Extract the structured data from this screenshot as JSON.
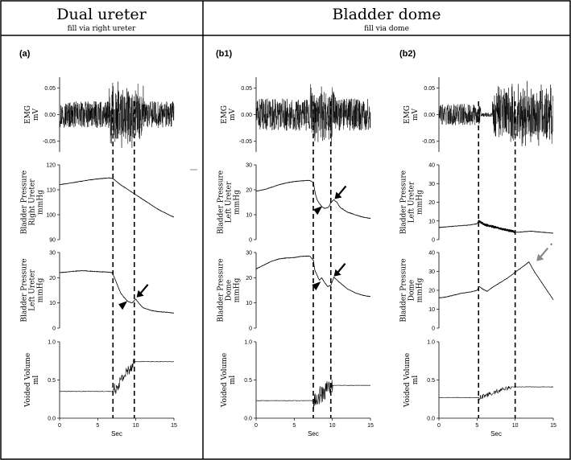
{
  "headers": {
    "left_title": "Dual ureter",
    "left_subtitle": "fill via right ureter",
    "right_title": "Bladder dome",
    "right_subtitle": "fill via dome"
  },
  "chart_data": [
    {
      "type": "line",
      "panel_label": "(a)",
      "xlabel": "Sec",
      "xlim": [
        0,
        15
      ],
      "xticks": [
        0,
        5,
        10,
        15
      ],
      "event_lines_sec": [
        7,
        9.8
      ],
      "rows": [
        {
          "key": "emg",
          "ylabel": [
            "EMG",
            "mV"
          ],
          "ylim": [
            -0.07,
            0.07
          ],
          "yticks": [
            "0.05",
            "0.00",
            "-0.05"
          ],
          "signal": "emg",
          "burst_sec": [
            6.5,
            11
          ],
          "burst_amp": 0.065
        },
        {
          "key": "bp1",
          "ylabel": [
            "Bladder Pressure",
            "Right Ureter",
            "mmHg"
          ],
          "ylim": [
            90,
            120
          ],
          "yticks": [
            "120",
            "110",
            "100",
            "90"
          ],
          "x": [
            0,
            2,
            4,
            5.5,
            6.5,
            7,
            8,
            9,
            10,
            11,
            12,
            13,
            14,
            15
          ],
          "y": [
            112,
            113,
            114,
            114.5,
            114.8,
            114.5,
            112,
            110,
            108,
            106,
            104,
            102,
            100.5,
            99
          ]
        },
        {
          "key": "bp2",
          "ylabel": [
            "Bladder Pressure",
            "Left Ureter",
            "mmHg"
          ],
          "ylim": [
            0,
            30
          ],
          "yticks": [
            "30",
            "20",
            "10",
            "0"
          ],
          "x": [
            0,
            1,
            2,
            3,
            4,
            5,
            6,
            6.9,
            7.2,
            7.6,
            8,
            8.5,
            9,
            9.5,
            10,
            10.5,
            11,
            12,
            13,
            14,
            15
          ],
          "y": [
            22,
            22.3,
            22.6,
            22.8,
            22.6,
            22.4,
            22.3,
            22,
            20,
            17,
            14,
            12,
            10.5,
            10,
            11.5,
            9.5,
            8,
            7,
            6.5,
            6.3,
            6
          ]
        },
        {
          "key": "vv",
          "ylabel": [
            "Voided Volume",
            "ml"
          ],
          "ylim": [
            0,
            1
          ],
          "yticks": [
            "1.0",
            "0.5",
            "0.0"
          ],
          "signal": "volume",
          "base": 0.35,
          "top": 0.74,
          "rise_sec": [
            7,
            9.8
          ],
          "noise": 0.08
        }
      ],
      "annotations": [
        {
          "shape": "arrowhead",
          "row": "bp2",
          "x": 9.1,
          "y": 9.8,
          "color": "#000000"
        },
        {
          "shape": "arrow",
          "row": "bp2",
          "x": 10.1,
          "y": 12.2,
          "color": "#000000"
        }
      ]
    },
    {
      "type": "line",
      "panel_label": "(b1)",
      "xlabel": "Sec",
      "xlim": [
        0,
        15
      ],
      "xticks": [
        0,
        5,
        10,
        15
      ],
      "event_lines_sec": [
        7.5,
        9.8
      ],
      "rows": [
        {
          "key": "emg",
          "ylabel": [
            "EMG",
            "mV"
          ],
          "ylim": [
            -0.07,
            0.07
          ],
          "yticks": [
            "0.05",
            "0.00",
            "-0.05"
          ],
          "signal": "emg",
          "burst_sec": [
            7,
            10.5
          ],
          "burst_amp": 0.06,
          "base_amp": 0.03
        },
        {
          "key": "bp1",
          "ylabel": [
            "Bladder Pressure",
            "Left Ureter",
            "mmHg"
          ],
          "ylim": [
            0,
            30
          ],
          "yticks": [
            "30",
            "20",
            "10",
            "0"
          ],
          "x": [
            0,
            1,
            2,
            3,
            4,
            5,
            6,
            7,
            7.5,
            7.8,
            8,
            8.3,
            8.7,
            9,
            9.5,
            9.8,
            10.2,
            10.6,
            11,
            12,
            13,
            14,
            15
          ],
          "y": [
            19.5,
            20,
            21,
            22,
            22.8,
            23.3,
            23.6,
            23.8,
            23,
            18,
            16,
            14.5,
            13,
            12.5,
            13,
            14.8,
            16,
            15,
            13,
            11,
            10,
            9,
            8.5
          ]
        },
        {
          "key": "bp2",
          "ylabel": [
            "Bladder Pressure",
            "Dome",
            "mmHg"
          ],
          "ylim": [
            0,
            30
          ],
          "yticks": [
            "30",
            "20",
            "10",
            "0"
          ],
          "x": [
            0,
            1,
            2,
            3,
            4,
            5,
            6,
            7,
            7.5,
            7.7,
            8,
            8.3,
            8.6,
            9,
            9.4,
            9.8,
            10.2,
            11,
            12,
            13,
            14,
            15
          ],
          "y": [
            23.5,
            25,
            26.5,
            27.5,
            27.8,
            28,
            28.5,
            28.6,
            27,
            23,
            21,
            19,
            20,
            18,
            16.5,
            17,
            20.2,
            18,
            15.5,
            14,
            13,
            12.5
          ]
        },
        {
          "key": "vv",
          "ylabel": [
            "Voided Volume",
            "ml"
          ],
          "ylim": [
            0,
            1
          ],
          "yticks": [
            "1.0",
            "0.5",
            "0.0"
          ],
          "signal": "volume",
          "base": 0.23,
          "top": 0.43,
          "rise_sec": [
            7.5,
            10
          ],
          "noise": 0.12
        }
      ],
      "annotations": [
        {
          "shape": "arrowhead",
          "row": "bp1",
          "x": 8.9,
          "y": 12.5,
          "color": "#000000"
        },
        {
          "shape": "arrow",
          "row": "bp1",
          "x": 10.3,
          "y": 16.3,
          "color": "#000000"
        },
        {
          "shape": "arrowhead",
          "row": "bp2",
          "x": 8.7,
          "y": 17.5,
          "color": "#000000"
        },
        {
          "shape": "arrow",
          "row": "bp2",
          "x": 10.2,
          "y": 20.5,
          "color": "#000000"
        }
      ]
    },
    {
      "type": "line",
      "panel_label": "(b2)",
      "xlabel": "Sec",
      "xlim": [
        0,
        15
      ],
      "xticks": [
        0,
        5,
        10,
        15
      ],
      "event_lines_sec": [
        5.2,
        10
      ],
      "rows": [
        {
          "key": "emg",
          "ylabel": [
            "EMG",
            "mV"
          ],
          "ylim": [
            -0.07,
            0.07
          ],
          "yticks": [
            "0.05",
            "0.00",
            "-0.05"
          ],
          "signal": "emg",
          "burst_sec": [
            5.5,
            15
          ],
          "burst_amp": 0.065,
          "base_amp": 0.02,
          "quiet_sec": [
            5.5,
            7
          ]
        },
        {
          "key": "bp1",
          "ylabel": [
            "Bladder Pressure",
            "Left Ureter",
            "mmHg"
          ],
          "ylim": [
            0,
            40
          ],
          "yticks": [
            "40",
            "30",
            "20",
            "10",
            "0"
          ],
          "x": [
            0,
            1,
            2,
            3,
            4,
            5,
            5.2,
            5.6,
            6,
            7,
            8,
            9,
            9.6,
            10,
            10.5,
            11,
            12,
            13,
            14,
            15
          ],
          "y": [
            6.5,
            6.8,
            7.2,
            7.5,
            7.8,
            8.5,
            10,
            9,
            8,
            7,
            6,
            5,
            4.5,
            4,
            4,
            4.2,
            4.5,
            4.2,
            3.8,
            3.5
          ],
          "noise": 0.8,
          "noise_sec": [
            5.2,
            10
          ]
        },
        {
          "key": "bp2",
          "ylabel": [
            "Bladder Pressure",
            "Dome",
            "mmHg"
          ],
          "ylim": [
            0,
            40
          ],
          "yticks": [
            "40",
            "30",
            "20",
            "10",
            "0"
          ],
          "x": [
            0,
            1,
            2,
            3,
            4,
            5,
            5.3,
            5.8,
            6.3,
            7,
            8,
            9,
            10,
            11,
            11.8,
            12.5,
            13.5,
            14.5,
            15
          ],
          "y": [
            16,
            16.5,
            17.5,
            18.5,
            19,
            20,
            22,
            20.5,
            19.5,
            21.5,
            24,
            26.5,
            29.5,
            32.5,
            35,
            30,
            24,
            18,
            15
          ]
        },
        {
          "key": "vv",
          "ylabel": [
            "Voided Volume",
            "ml"
          ],
          "ylim": [
            0,
            1
          ],
          "yticks": [
            "1.0",
            "0.5",
            "0.0"
          ],
          "signal": "volume",
          "base": 0.27,
          "top": 0.41,
          "rise_sec": [
            5.3,
            9.5
          ],
          "noise": 0.03
        }
      ],
      "annotations": [
        {
          "shape": "arrow",
          "row": "bp2",
          "x": 12.8,
          "y": 35.5,
          "color": "#888888",
          "marker": "*"
        }
      ]
    }
  ]
}
